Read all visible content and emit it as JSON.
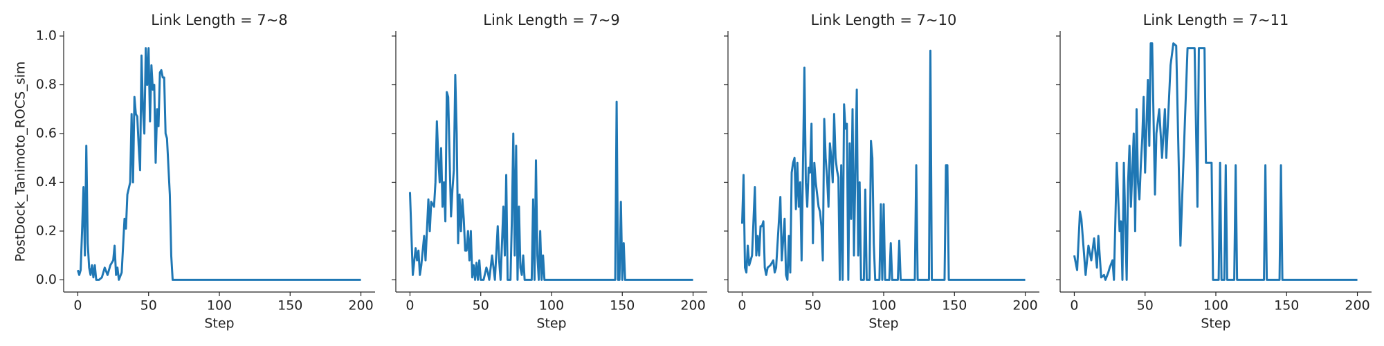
{
  "chart_data": [
    {
      "type": "line",
      "title": "Link Length = 7~8",
      "x_label": "Step",
      "y_label": "PostDock_Tanimoto_ROCS_sim",
      "color": "#1f77b4",
      "xlim": [
        -10,
        210
      ],
      "xticks": [
        0,
        50,
        100,
        150,
        200
      ],
      "ylim": [
        -0.05,
        1.02
      ],
      "yticks": [
        {
          "value": 0,
          "label": "0.0"
        },
        0.2,
        0.4,
        0.6,
        0.8,
        {
          "value": 1,
          "label": "1.0"
        }
      ],
      "x": [
        0,
        1,
        2,
        3,
        4,
        5,
        6,
        7,
        8,
        9,
        10,
        11,
        12,
        13,
        15,
        17,
        19,
        21,
        23,
        25,
        26,
        27,
        28,
        29,
        31,
        33,
        34,
        35,
        37,
        38,
        39,
        40,
        41,
        42,
        43,
        44,
        45,
        46,
        47,
        48,
        49,
        50,
        51,
        52,
        53,
        54,
        55,
        56,
        57,
        58,
        59,
        60,
        61,
        62,
        63,
        65,
        66,
        67,
        200
      ],
      "values": [
        0.04,
        0.02,
        0.04,
        0.2,
        0.38,
        0.1,
        0.55,
        0.15,
        0.05,
        0.02,
        0.06,
        0.01,
        0.06,
        0,
        0,
        0.01,
        0.05,
        0.02,
        0.06,
        0.08,
        0.14,
        0.02,
        0.05,
        0,
        0.03,
        0.25,
        0.21,
        0.35,
        0.4,
        0.68,
        0.4,
        0.75,
        0.68,
        0.67,
        0.55,
        0.45,
        0.92,
        0.7,
        0.6,
        0.95,
        0.8,
        0.95,
        0.65,
        0.88,
        0.78,
        0.8,
        0.48,
        0.7,
        0.63,
        0.85,
        0.86,
        0.83,
        0.83,
        0.6,
        0.58,
        0.35,
        0.1,
        0,
        0
      ]
    },
    {
      "type": "line",
      "title": "Link Length = 7~9",
      "x_label": "Step",
      "color": "#1f77b4",
      "xlim": [
        -10,
        210
      ],
      "xticks": [
        0,
        50,
        100,
        150,
        200
      ],
      "x": [
        0,
        2,
        4,
        5,
        6,
        7,
        8,
        10,
        11,
        13,
        14,
        15,
        17,
        18,
        19,
        20,
        21,
        22,
        23,
        24,
        25,
        26,
        27,
        28,
        29,
        30,
        31,
        32,
        33,
        34,
        35,
        36,
        37,
        38,
        39,
        40,
        41,
        42,
        43,
        44,
        45,
        46,
        47,
        48,
        49,
        50,
        52,
        54,
        55,
        56,
        58,
        60,
        62,
        63,
        64,
        66,
        67,
        68,
        69,
        71,
        72,
        73,
        74,
        75,
        76,
        77,
        78,
        79,
        80,
        81,
        86,
        87,
        88,
        89,
        90,
        91,
        92,
        93,
        94,
        95,
        145,
        146,
        147,
        148,
        149,
        150,
        151,
        152,
        200
      ],
      "values": [
        0.36,
        0.02,
        0.13,
        0.08,
        0.12,
        0.02,
        0.06,
        0.18,
        0.08,
        0.33,
        0.2,
        0.32,
        0.3,
        0.4,
        0.65,
        0.5,
        0.4,
        0.54,
        0.3,
        0.4,
        0.24,
        0.77,
        0.75,
        0.5,
        0.26,
        0.37,
        0.45,
        0.84,
        0.6,
        0.15,
        0.35,
        0.2,
        0.33,
        0.25,
        0.12,
        0.12,
        0.2,
        0.08,
        0.2,
        0.01,
        0.06,
        0,
        0.07,
        0,
        0.08,
        0,
        0,
        0.05,
        0.03,
        0,
        0.1,
        0,
        0.22,
        0.08,
        0,
        0.3,
        0.1,
        0.43,
        0,
        0,
        0.25,
        0.6,
        0.1,
        0.55,
        0,
        0.3,
        0.05,
        0.02,
        0.1,
        0,
        0,
        0.33,
        0,
        0.49,
        0.1,
        0,
        0.2,
        0,
        0.1,
        0,
        0,
        0.73,
        0,
        0,
        0.32,
        0,
        0.15,
        0,
        0
      ]
    },
    {
      "type": "line",
      "title": "Link Length = 7~10",
      "x_label": "Step",
      "color": "#1f77b4",
      "xlim": [
        -10,
        210
      ],
      "xticks": [
        0,
        50,
        100,
        150,
        200
      ],
      "x": [
        0,
        1,
        2,
        3,
        4,
        5,
        7,
        9,
        10,
        11,
        12,
        13,
        14,
        15,
        16,
        17,
        18,
        20,
        22,
        23,
        24,
        27,
        28,
        30,
        31,
        32,
        33,
        34,
        35,
        36,
        37,
        38,
        39,
        40,
        41,
        42,
        43,
        44,
        45,
        46,
        47,
        48,
        49,
        50,
        51,
        52,
        53,
        54,
        55,
        56,
        57,
        58,
        59,
        60,
        61,
        62,
        63,
        64,
        65,
        66,
        67,
        68,
        69,
        70,
        71,
        72,
        73,
        74,
        75,
        76,
        77,
        78,
        79,
        80,
        81,
        82,
        83,
        84,
        86,
        87,
        88,
        90,
        91,
        92,
        93,
        94,
        97,
        98,
        99,
        100,
        101,
        104,
        105,
        106,
        110,
        111,
        112,
        122,
        123,
        124,
        132,
        133,
        134,
        143,
        144,
        145,
        146,
        200
      ],
      "values": [
        0.23,
        0.43,
        0.05,
        0.03,
        0.14,
        0.06,
        0.1,
        0.38,
        0.1,
        0.18,
        0.1,
        0.22,
        0.22,
        0.24,
        0.05,
        0.02,
        0.05,
        0.06,
        0.08,
        0.03,
        0.05,
        0.34,
        0.08,
        0.25,
        0.02,
        0,
        0.18,
        0.03,
        0.44,
        0.48,
        0.5,
        0.29,
        0.48,
        0.3,
        0.4,
        0.08,
        0.48,
        0.87,
        0.4,
        0.3,
        0.46,
        0.44,
        0.64,
        0.15,
        0.48,
        0.4,
        0.35,
        0.3,
        0.28,
        0.22,
        0.08,
        0.66,
        0.5,
        0.42,
        0.3,
        0.56,
        0.5,
        0.4,
        0.68,
        0.5,
        0.45,
        0.42,
        0,
        0.47,
        0,
        0.72,
        0.62,
        0.64,
        0,
        0.56,
        0.25,
        0.7,
        0.1,
        0.46,
        0.78,
        0.1,
        0.4,
        0,
        0,
        0.37,
        0,
        0,
        0.57,
        0.5,
        0.15,
        0,
        0,
        0.31,
        0,
        0.31,
        0,
        0,
        0.15,
        0,
        0,
        0.16,
        0,
        0,
        0.47,
        0,
        0,
        0.94,
        0,
        0,
        0.47,
        0.47,
        0,
        0
      ]
    },
    {
      "type": "line",
      "title": "Link Length = 7~11",
      "x_label": "Step",
      "color": "#1f77b4",
      "xlim": [
        -10,
        210
      ],
      "xticks": [
        0,
        50,
        100,
        150,
        200
      ],
      "x": [
        0,
        2,
        4,
        5,
        8,
        10,
        12,
        14,
        16,
        17,
        19,
        21,
        22,
        24,
        25,
        27,
        28,
        30,
        32,
        33,
        34,
        35,
        37,
        38,
        39,
        40,
        42,
        43,
        44,
        45,
        46,
        47,
        48,
        49,
        50,
        52,
        53,
        54,
        55,
        57,
        58,
        60,
        62,
        64,
        65,
        68,
        70,
        72,
        75,
        80,
        85,
        87,
        88,
        92,
        93,
        97,
        98,
        102,
        103,
        104,
        106,
        107,
        108,
        113,
        114,
        115,
        134,
        135,
        136,
        145,
        146,
        147,
        200
      ],
      "values": [
        0.1,
        0.04,
        0.28,
        0.25,
        0.02,
        0.14,
        0.08,
        0.17,
        0.05,
        0.18,
        0.01,
        0.02,
        0,
        0.03,
        0.05,
        0.08,
        0,
        0.48,
        0.2,
        0.24,
        0,
        0.48,
        0,
        0.4,
        0.55,
        0.3,
        0.6,
        0.2,
        0.7,
        0.4,
        0.33,
        0.47,
        0.58,
        0.75,
        0.44,
        0.82,
        0.55,
        0.97,
        0.97,
        0.35,
        0.6,
        0.7,
        0.5,
        0.7,
        0.5,
        0.88,
        0.97,
        0.96,
        0.14,
        0.95,
        0.95,
        0.3,
        0.95,
        0.95,
        0.48,
        0.48,
        0,
        0,
        0.48,
        0,
        0,
        0.47,
        0,
        0,
        0.47,
        0,
        0,
        0.47,
        0,
        0,
        0.47,
        0,
        0
      ]
    }
  ]
}
